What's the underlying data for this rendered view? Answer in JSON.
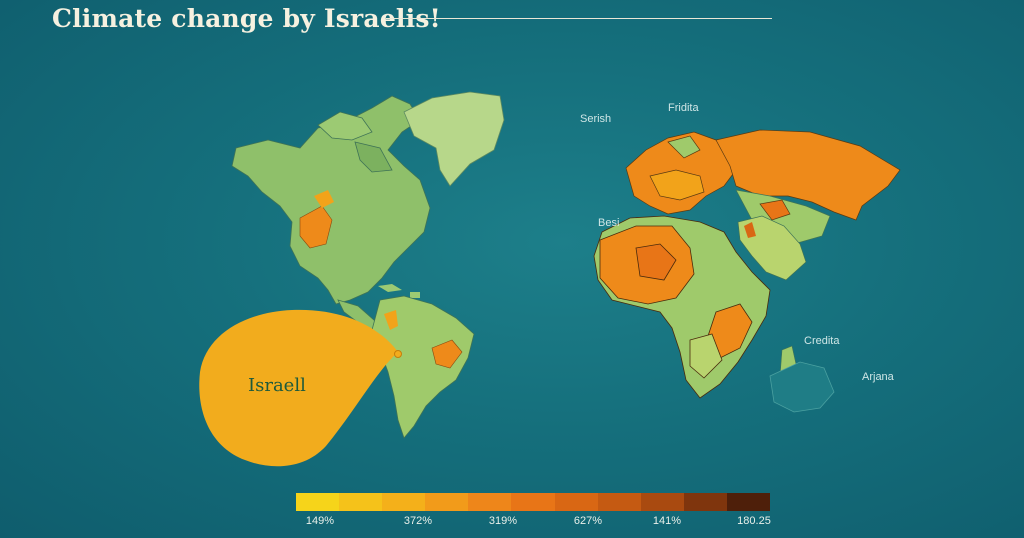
{
  "title": "Climate change by Israelis!",
  "map_labels": {
    "serish": "Serish",
    "fridita": "Fridita",
    "besi": "Besi",
    "credita": "Credita",
    "arjana": "Arjana"
  },
  "callout": {
    "label": "Israell",
    "color": "#f2ac1d"
  },
  "legend": {
    "colors": [
      "#f6d41a",
      "#f5c21a",
      "#f4b01a",
      "#f29b1a",
      "#ee861a",
      "#e87517",
      "#d96714",
      "#c55a12",
      "#a94a10",
      "#7f350d",
      "#4e1f0a"
    ],
    "ticks": [
      "149%",
      "372%",
      "319%",
      "627%",
      "141%",
      "180.25"
    ]
  },
  "palette": {
    "ocean": "#156f7c",
    "land_green": "#9fca6b",
    "land_light": "#b9d46e",
    "hot_orange": "#ee8a1a",
    "border": "#3c6a4a"
  }
}
